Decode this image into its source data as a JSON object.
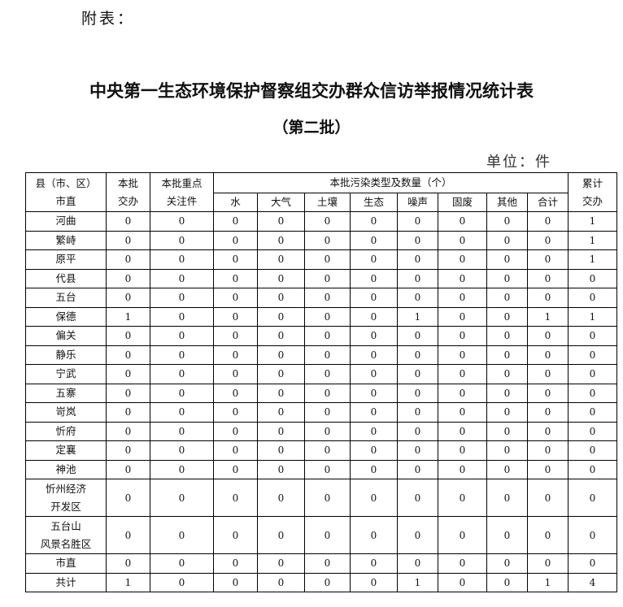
{
  "attachment_label": "附表：",
  "title": "中央第一生态环境保护督察组交办群众信访举报情况统计表",
  "subtitle": "（第二批）",
  "unit": "单位：件",
  "header": {
    "county": [
      "县（市、区）",
      "市直"
    ],
    "batch": [
      "本批",
      "交办"
    ],
    "key": [
      "本批重点",
      "关注件"
    ],
    "pollution_group": "本批污染类型及数量（个）",
    "pollution_types": [
      "水",
      "大气",
      "土壤",
      "生态",
      "噪声",
      "固废",
      "其他",
      "合计"
    ],
    "cumulative": [
      "累计",
      "交办"
    ]
  },
  "rows": [
    {
      "name": [
        "河曲"
      ],
      "values": [
        0,
        0,
        0,
        0,
        0,
        0,
        0,
        0,
        0,
        0,
        1
      ]
    },
    {
      "name": [
        "繁峙"
      ],
      "values": [
        0,
        0,
        0,
        0,
        0,
        0,
        0,
        0,
        0,
        0,
        1
      ]
    },
    {
      "name": [
        "原平"
      ],
      "values": [
        0,
        0,
        0,
        0,
        0,
        0,
        0,
        0,
        0,
        0,
        1
      ]
    },
    {
      "name": [
        "代县"
      ],
      "values": [
        0,
        0,
        0,
        0,
        0,
        0,
        0,
        0,
        0,
        0,
        0
      ]
    },
    {
      "name": [
        "五台"
      ],
      "values": [
        0,
        0,
        0,
        0,
        0,
        0,
        0,
        0,
        0,
        0,
        0
      ]
    },
    {
      "name": [
        "保德"
      ],
      "values": [
        1,
        0,
        0,
        0,
        0,
        0,
        1,
        0,
        0,
        1,
        1
      ]
    },
    {
      "name": [
        "偏关"
      ],
      "values": [
        0,
        0,
        0,
        0,
        0,
        0,
        0,
        0,
        0,
        0,
        0
      ]
    },
    {
      "name": [
        "静乐"
      ],
      "values": [
        0,
        0,
        0,
        0,
        0,
        0,
        0,
        0,
        0,
        0,
        0
      ]
    },
    {
      "name": [
        "宁武"
      ],
      "values": [
        0,
        0,
        0,
        0,
        0,
        0,
        0,
        0,
        0,
        0,
        0
      ]
    },
    {
      "name": [
        "五寨"
      ],
      "values": [
        0,
        0,
        0,
        0,
        0,
        0,
        0,
        0,
        0,
        0,
        0
      ]
    },
    {
      "name": [
        "岢岚"
      ],
      "values": [
        0,
        0,
        0,
        0,
        0,
        0,
        0,
        0,
        0,
        0,
        0
      ]
    },
    {
      "name": [
        "忻府"
      ],
      "values": [
        0,
        0,
        0,
        0,
        0,
        0,
        0,
        0,
        0,
        0,
        0
      ]
    },
    {
      "name": [
        "定襄"
      ],
      "values": [
        0,
        0,
        0,
        0,
        0,
        0,
        0,
        0,
        0,
        0,
        0
      ]
    },
    {
      "name": [
        "神池"
      ],
      "values": [
        0,
        0,
        0,
        0,
        0,
        0,
        0,
        0,
        0,
        0,
        0
      ]
    },
    {
      "name": [
        "忻州经济",
        "开发区"
      ],
      "values": [
        0,
        0,
        0,
        0,
        0,
        0,
        0,
        0,
        0,
        0,
        0
      ]
    },
    {
      "name": [
        "五台山",
        "风景名胜区"
      ],
      "values": [
        0,
        0,
        0,
        0,
        0,
        0,
        0,
        0,
        0,
        0,
        0
      ]
    },
    {
      "name": [
        "市直"
      ],
      "values": [
        0,
        0,
        0,
        0,
        0,
        0,
        0,
        0,
        0,
        0,
        0
      ]
    },
    {
      "name": [
        "共计"
      ],
      "values": [
        1,
        0,
        0,
        0,
        0,
        0,
        1,
        0,
        0,
        1,
        4
      ]
    }
  ]
}
